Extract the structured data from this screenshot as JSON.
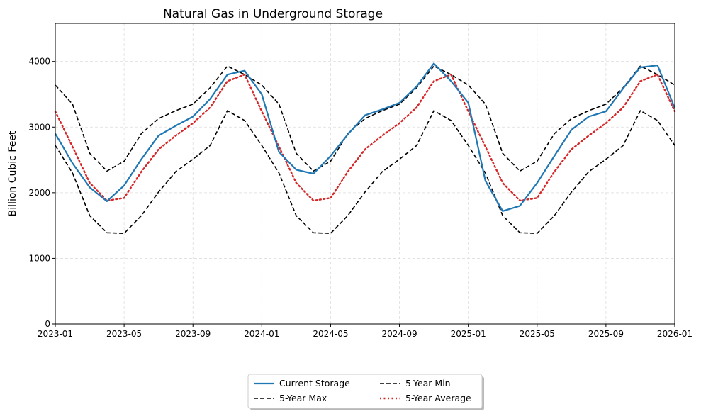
{
  "chart_data": {
    "type": "line",
    "title": "Natural Gas in Underground Storage",
    "xlabel": "",
    "ylabel": "Billion Cubic Feet",
    "ylim": [
      0,
      4580
    ],
    "yticks": [
      0,
      1000,
      2000,
      3000,
      4000
    ],
    "xticks": [
      "2023-01",
      "2023-05",
      "2023-09",
      "2024-01",
      "2024-05",
      "2024-09",
      "2025-01",
      "2025-05",
      "2025-09",
      "2026-01"
    ],
    "x_start": "2023-01",
    "x_step": "month",
    "grid": true,
    "legend": "bottom-center",
    "series": [
      {
        "name": "Current Storage",
        "color": "#1f77b4",
        "style": "solid",
        "values": [
          2900,
          2450,
          2080,
          1870,
          2110,
          2510,
          2870,
          3020,
          3160,
          3430,
          3800,
          3860,
          3500,
          2620,
          2350,
          2290,
          2560,
          2890,
          3180,
          3270,
          3370,
          3620,
          3970,
          3700,
          3370,
          2180,
          1720,
          1800,
          2150,
          2560,
          2960,
          3160,
          3240,
          3590,
          3910,
          3940,
          3290
        ]
      },
      {
        "name": "5-Year Max",
        "color": "#000000",
        "style": "dashed",
        "values": [
          3640,
          3350,
          2600,
          2330,
          2480,
          2900,
          3130,
          3250,
          3350,
          3600,
          3930,
          3800,
          3640,
          3350,
          2600,
          2330,
          2480,
          2900,
          3130,
          3250,
          3350,
          3600,
          3930,
          3800,
          3640,
          3350,
          2600,
          2330,
          2480,
          2900,
          3130,
          3250,
          3350,
          3600,
          3930,
          3800,
          3640
        ]
      },
      {
        "name": "5-Year Min",
        "color": "#000000",
        "style": "dashed",
        "values": [
          2720,
          2300,
          1650,
          1390,
          1380,
          1650,
          2010,
          2320,
          2510,
          2720,
          3250,
          3100,
          2720,
          2300,
          1650,
          1390,
          1380,
          1650,
          2010,
          2320,
          2510,
          2720,
          3250,
          3100,
          2720,
          2300,
          1650,
          1390,
          1380,
          1650,
          2010,
          2320,
          2510,
          2720,
          3250,
          3100,
          2720
        ]
      },
      {
        "name": "5-Year Average",
        "color": "#d62728",
        "style": "dotted",
        "values": [
          3240,
          2700,
          2150,
          1880,
          1920,
          2320,
          2660,
          2870,
          3060,
          3300,
          3700,
          3800,
          3240,
          2700,
          2150,
          1880,
          1920,
          2320,
          2660,
          2870,
          3060,
          3300,
          3700,
          3800,
          3240,
          2700,
          2150,
          1880,
          1920,
          2320,
          2660,
          2870,
          3060,
          3300,
          3700,
          3800,
          3240
        ]
      }
    ]
  }
}
